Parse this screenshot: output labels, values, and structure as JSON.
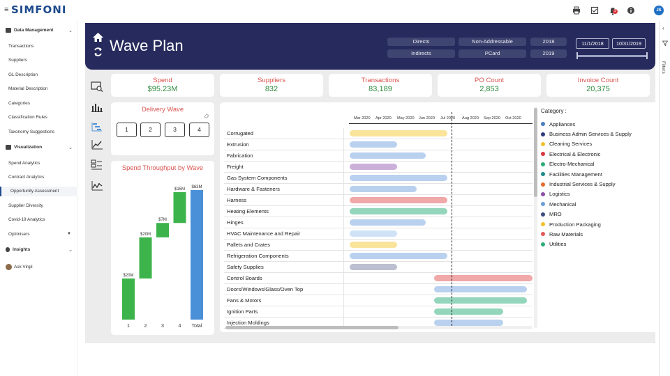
{
  "app": {
    "logo": "SIMFONI",
    "user_initials": "JS",
    "notification_count": "3"
  },
  "sidebar": {
    "sections": [
      {
        "label": "Data Management"
      },
      {
        "label": "Visualization"
      },
      {
        "label": "Insights"
      }
    ],
    "data_management_items": [
      "Transactions",
      "Suppliers",
      "GL Description",
      "Material Description",
      "Categories",
      "Classification Rules",
      "Taxonomy Suggestions"
    ],
    "visualization_items": [
      "Spend Analytics",
      "Contract Analytics",
      "Opportunity Assessment",
      "Supplier Diversity",
      "Covid-19 Analytics",
      "Optimisers"
    ],
    "ask_virgil": "Ask Virgil"
  },
  "header": {
    "title": "Wave Plan",
    "pills": {
      "directs": "Directs",
      "indirects": "Indirects",
      "non_addressable": "Non-Addressable",
      "pcard": "PCard",
      "year_2018": "2018",
      "year_2019": "2019"
    },
    "date_from": "11/1/2018",
    "date_to": "10/31/2019"
  },
  "kpis": [
    {
      "label": "Spend",
      "value": "$95.23M"
    },
    {
      "label": "Suppliers",
      "value": "832"
    },
    {
      "label": "Transactions",
      "value": "83,189"
    },
    {
      "label": "PO Count",
      "value": "2,853"
    },
    {
      "label": "Invoice Count",
      "value": "20,375"
    }
  ],
  "delivery_wave": {
    "title": "Delivery Wave",
    "buttons": [
      "1",
      "2",
      "3",
      "4"
    ]
  },
  "chart_data": {
    "type": "bar",
    "title": "Spend Throughput by Wave",
    "categories": [
      "1",
      "2",
      "3",
      "4",
      "Total"
    ],
    "values": [
      20,
      20,
      7,
      15,
      63
    ],
    "value_labels": [
      "$20M",
      "$20M",
      "$7M",
      "$15M",
      "$63M"
    ],
    "waterfall": true,
    "colors": {
      "step": "#3cb44b",
      "total": "#4a90d9"
    }
  },
  "gantt": {
    "months": [
      "Mar 2020",
      "Apr 2020",
      "May 2020",
      "Jun 2020",
      "Jul 2020",
      "Aug 2020",
      "Sep 2020",
      "Oct 2020"
    ],
    "legend_title": "Category :",
    "legend": [
      {
        "name": "Appliances",
        "color": "#4a7fc1"
      },
      {
        "name": "Business Admin Services & Supply",
        "color": "#2f3a7a"
      },
      {
        "name": "Cleaning Services",
        "color": "#f2c12e"
      },
      {
        "name": "Electrical & Electronic",
        "color": "#d9363e"
      },
      {
        "name": "Electro-Mechanical",
        "color": "#2eaa78"
      },
      {
        "name": "Facilities Management",
        "color": "#1f8a8a"
      },
      {
        "name": "Industrial Services & Supply",
        "color": "#e86a2c"
      },
      {
        "name": "Logistics",
        "color": "#8a4fa8"
      },
      {
        "name": "Mechanical",
        "color": "#6a9fd9"
      },
      {
        "name": "MRO",
        "color": "#3a4a7a"
      },
      {
        "name": "Production Packaging",
        "color": "#f2c12e"
      },
      {
        "name": "Raw Materials",
        "color": "#e05a5a"
      },
      {
        "name": "Utilities",
        "color": "#2eaa78"
      }
    ],
    "rows": [
      {
        "name": "Corrugated",
        "start": 0,
        "end": 4.5,
        "color": "#f9e49a"
      },
      {
        "name": "Extrusion",
        "start": 0,
        "end": 2.2,
        "color": "#b9d1ef"
      },
      {
        "name": "Fabrication",
        "start": 0,
        "end": 3.5,
        "color": "#b9d1ef"
      },
      {
        "name": "Freight",
        "start": 0,
        "end": 2.2,
        "color": "#cbb0d9"
      },
      {
        "name": "Gas System Components",
        "start": 0,
        "end": 4.5,
        "color": "#b9d1ef"
      },
      {
        "name": "Hardware & Fasteners",
        "start": 0,
        "end": 3.1,
        "color": "#b9d1ef"
      },
      {
        "name": "Harness",
        "start": 0,
        "end": 4.5,
        "color": "#f0a8a8"
      },
      {
        "name": "Heating Elements",
        "start": 0,
        "end": 4.5,
        "color": "#94d6bb"
      },
      {
        "name": "Hinges",
        "start": 0,
        "end": 3.5,
        "color": "#b9d1ef"
      },
      {
        "name": "HVAC Maintenance and Repair",
        "start": 0,
        "end": 2.2,
        "color": "#cfe2f6"
      },
      {
        "name": "Pallets and Crates",
        "start": 0,
        "end": 2.2,
        "color": "#f9e49a"
      },
      {
        "name": "Refrigeration Components",
        "start": 0,
        "end": 4.5,
        "color": "#b9d1ef"
      },
      {
        "name": "Safety Supplies",
        "start": 0,
        "end": 2.2,
        "color": "#bcbfcf"
      },
      {
        "name": "Control Boards",
        "start": 3.9,
        "end": 9,
        "color": "#f0a8a8"
      },
      {
        "name": "Doors/Windows/Glass/Oven Top",
        "start": 3.9,
        "end": 8.2,
        "color": "#b9d1ef"
      },
      {
        "name": "Fans & Motors",
        "start": 3.9,
        "end": 8.2,
        "color": "#94d6bb"
      },
      {
        "name": "Ignition Parts",
        "start": 3.9,
        "end": 7.1,
        "color": "#94d6bb"
      },
      {
        "name": "Injection Moldings",
        "start": 3.9,
        "end": 7.1,
        "color": "#b9d1ef"
      }
    ],
    "today_marker": 4.7
  },
  "filters_label": "Filters"
}
